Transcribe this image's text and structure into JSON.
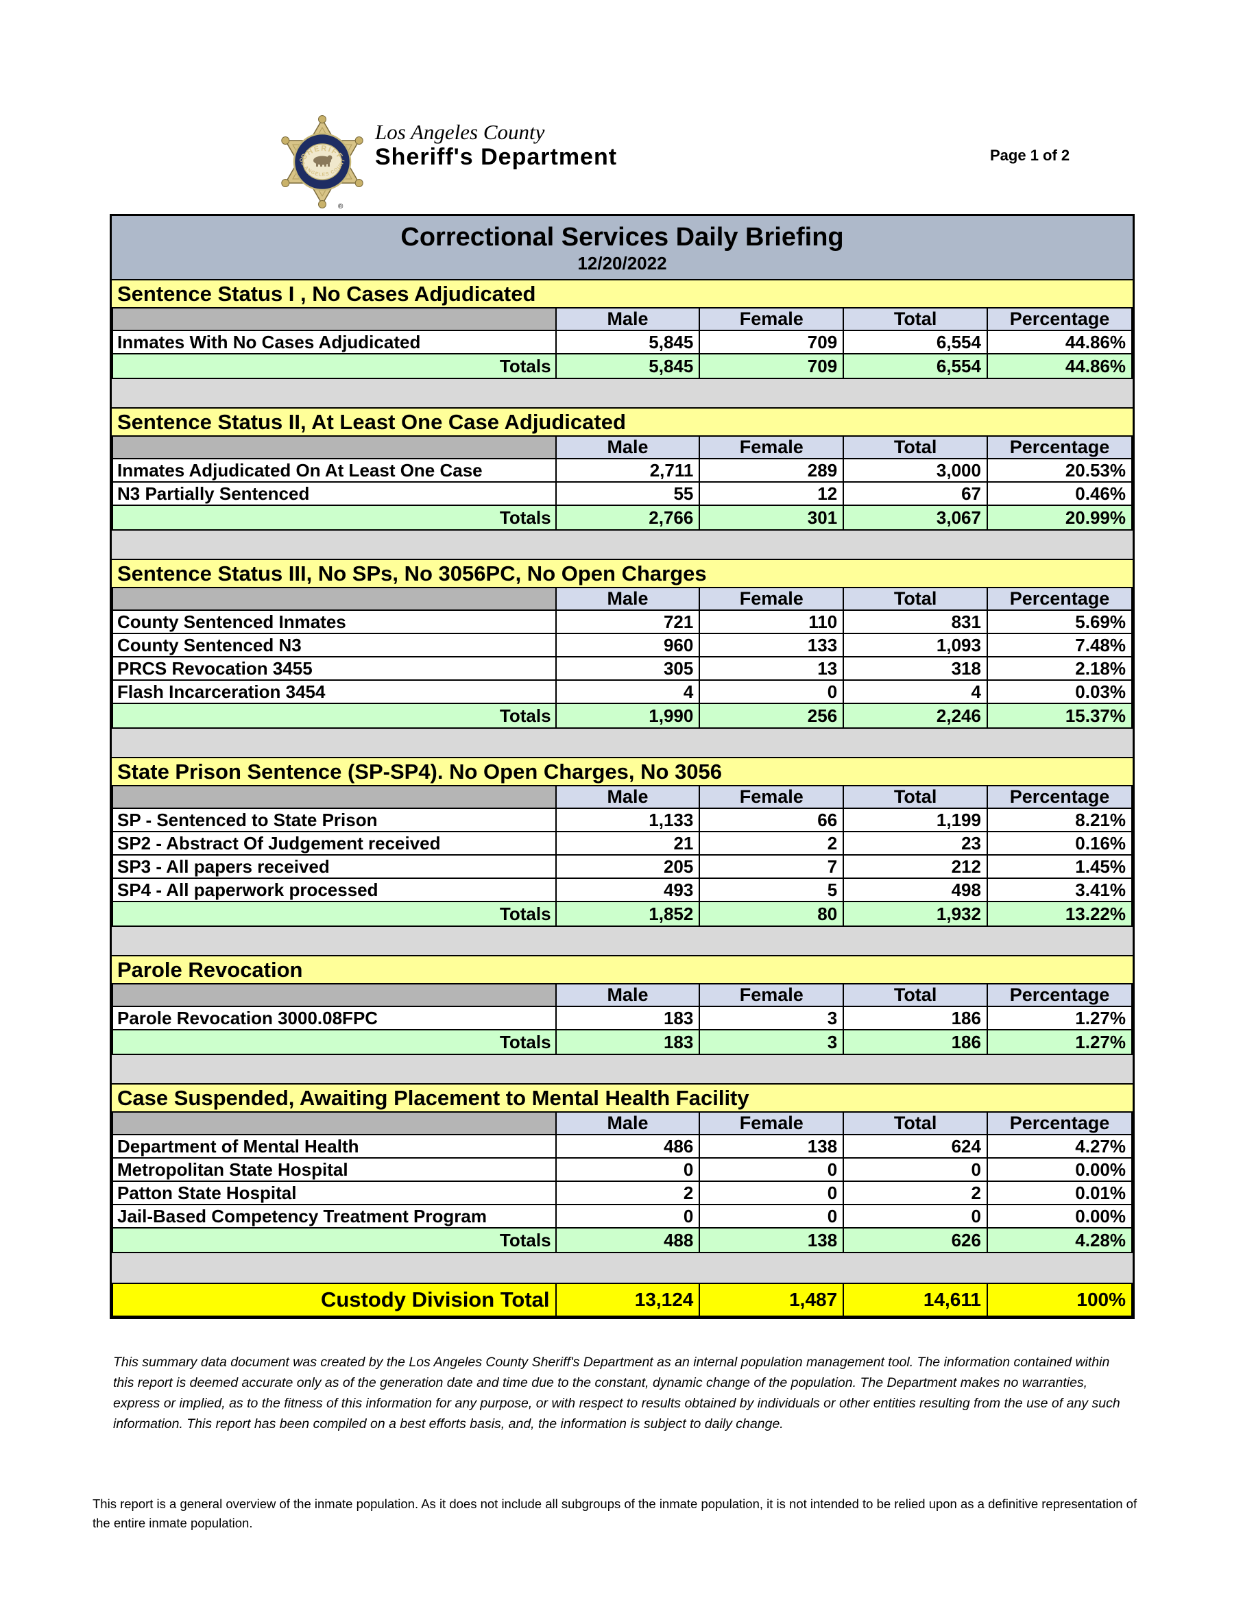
{
  "header": {
    "logo_county": "Los Angeles County",
    "logo_department": "Sheriff's Department",
    "badge_text_top": "SHERIFF",
    "badge_text_bottom": "LOS ANGELES COUNTY",
    "trademark": "®",
    "page_label": "Page 1 of 2"
  },
  "report": {
    "title": "Correctional Services Daily Briefing",
    "date": "12/20/2022"
  },
  "columns": [
    "Male",
    "Female",
    "Total",
    "Percentage"
  ],
  "totals_label": "Totals",
  "sections": [
    {
      "title": "Sentence Status I , No Cases Adjudicated",
      "rows": [
        {
          "label": "Inmates With No Cases Adjudicated",
          "values": [
            "5,845",
            "709",
            "6,554",
            "44.86%"
          ]
        }
      ],
      "totals": [
        "5,845",
        "709",
        "6,554",
        "44.86%"
      ]
    },
    {
      "title": "Sentence Status II, At Least One Case Adjudicated",
      "rows": [
        {
          "label": "Inmates Adjudicated On At Least One Case",
          "values": [
            "2,711",
            "289",
            "3,000",
            "20.53%"
          ]
        },
        {
          "label": "N3 Partially Sentenced",
          "values": [
            "55",
            "12",
            "67",
            "0.46%"
          ]
        }
      ],
      "totals": [
        "2,766",
        "301",
        "3,067",
        "20.99%"
      ]
    },
    {
      "title": "Sentence Status III, No SPs, No 3056PC, No Open Charges",
      "rows": [
        {
          "label": "County Sentenced Inmates",
          "values": [
            "721",
            "110",
            "831",
            "5.69%"
          ]
        },
        {
          "label": "County Sentenced N3",
          "values": [
            "960",
            "133",
            "1,093",
            "7.48%"
          ]
        },
        {
          "label": "PRCS Revocation 3455",
          "values": [
            "305",
            "13",
            "318",
            "2.18%"
          ]
        },
        {
          "label": "Flash Incarceration 3454",
          "values": [
            "4",
            "0",
            "4",
            "0.03%"
          ]
        }
      ],
      "totals": [
        "1,990",
        "256",
        "2,246",
        "15.37%"
      ]
    },
    {
      "title": "State Prison Sentence (SP-SP4). No Open Charges, No 3056",
      "rows": [
        {
          "label": "SP - Sentenced to State Prison",
          "values": [
            "1,133",
            "66",
            "1,199",
            "8.21%"
          ]
        },
        {
          "label": "SP2 - Abstract Of Judgement received",
          "values": [
            "21",
            "2",
            "23",
            "0.16%"
          ]
        },
        {
          "label": "SP3 - All papers received",
          "values": [
            "205",
            "7",
            "212",
            "1.45%"
          ]
        },
        {
          "label": "SP4 - All paperwork processed",
          "values": [
            "493",
            "5",
            "498",
            "3.41%"
          ]
        }
      ],
      "totals": [
        "1,852",
        "80",
        "1,932",
        "13.22%"
      ]
    },
    {
      "title": "Parole Revocation",
      "rows": [
        {
          "label": "Parole Revocation 3000.08FPC",
          "values": [
            "183",
            "3",
            "186",
            "1.27%"
          ]
        }
      ],
      "totals": [
        "183",
        "3",
        "186",
        "1.27%"
      ]
    },
    {
      "title": "Case Suspended, Awaiting Placement to Mental Health Facility",
      "rows": [
        {
          "label": "Department of Mental Health",
          "values": [
            "486",
            "138",
            "624",
            "4.27%"
          ]
        },
        {
          "label": "Metropolitan State Hospital",
          "values": [
            "0",
            "0",
            "0",
            "0.00%"
          ]
        },
        {
          "label": "Patton State Hospital",
          "values": [
            "2",
            "0",
            "2",
            "0.01%"
          ]
        },
        {
          "label": "Jail-Based Competency Treatment Program",
          "values": [
            "0",
            "0",
            "0",
            "0.00%"
          ]
        }
      ],
      "totals": [
        "488",
        "138",
        "626",
        "4.28%"
      ]
    }
  ],
  "custody_total": {
    "label": "Custody Division Total",
    "male": "13,124",
    "female": "1,487",
    "total": "14,611",
    "percentage": "100%"
  },
  "footer": {
    "disclaimer": "This summary data document was created by the Los Angeles County Sheriff's Department as an internal population management tool.  The information contained within this report is deemed accurate only as of the generation date and time due to the constant, dynamic change of the population.  The Department makes no warranties, express or implied, as to the fitness of this information for any purpose, or with respect to results obtained by individuals or other entities resulting from the use of any such information.  This report has been compiled on a best efforts basis, and, the information is subject to daily change.",
    "note": "This report is a general overview of the inmate population.  As it does not include all subgroups of the inmate population, it is not intended to be relied upon as a definitive representation of the entire inmate population."
  },
  "colors": {
    "title_bar_bg": "#aeb9ca",
    "section_header_bg": "#ffff99",
    "column_header_bg": "#d3daec",
    "row_header_empty_bg": "#b5b5b5",
    "totals_row_bg": "#ccffcc",
    "spacer_bg": "#d9d9d9",
    "grand_total_bg": "#ffff00",
    "border": "#000000",
    "page_bg": "#ffffff"
  }
}
